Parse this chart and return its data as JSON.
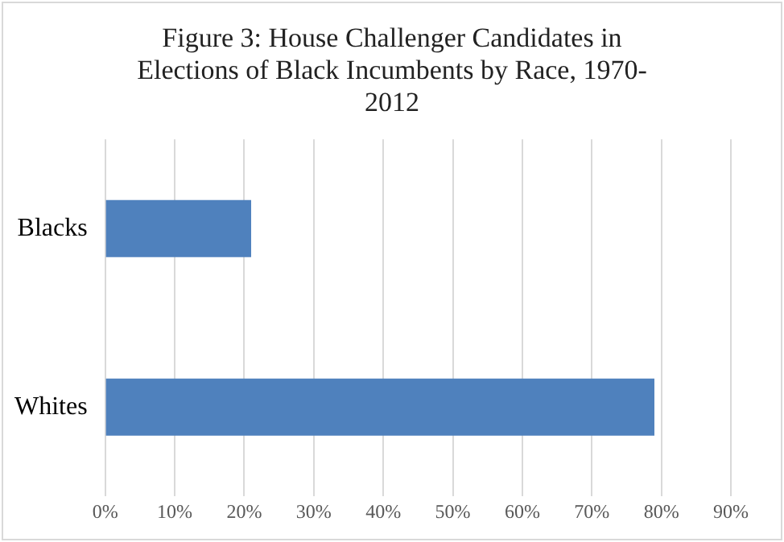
{
  "chart_data": {
    "type": "bar",
    "orientation": "horizontal",
    "title": "Figure 3: House Challenger Candidates in Elections of Black Incumbents by Race, 1970-2012",
    "categories": [
      "Blacks",
      "Whites"
    ],
    "values": [
      21,
      79
    ],
    "color": "#4f81bd",
    "xlim": [
      0,
      90
    ],
    "xticks": [
      {
        "value": 0,
        "label": "0%"
      },
      {
        "value": 10,
        "label": "10%"
      },
      {
        "value": 20,
        "label": "20%"
      },
      {
        "value": 30,
        "label": "30%"
      },
      {
        "value": 40,
        "label": "40%"
      },
      {
        "value": 50,
        "label": "50%"
      },
      {
        "value": 60,
        "label": "60%"
      },
      {
        "value": 70,
        "label": "70%"
      },
      {
        "value": 80,
        "label": "80%"
      },
      {
        "value": 90,
        "label": "90%"
      }
    ],
    "grid": "x",
    "legend": false
  }
}
